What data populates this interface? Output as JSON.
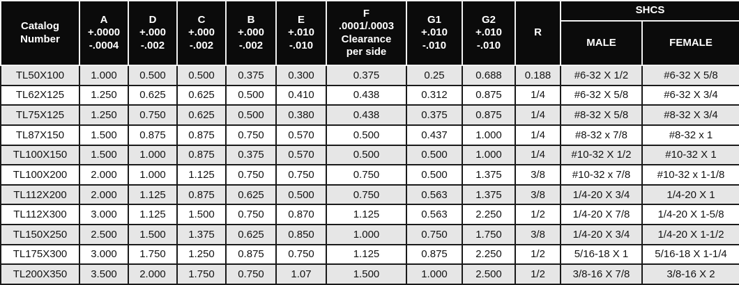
{
  "colors": {
    "header_bg": "#0b0b0b",
    "header_text": "#ffffff",
    "header_grid": "#f2f2f2",
    "body_grid": "#1a1a1a",
    "row_alt": "#e6e6e6",
    "row_base": "#ffffff",
    "body_text": "#121212"
  },
  "header": {
    "catalog_lines": [
      "Catalog",
      "Number"
    ],
    "cols": [
      {
        "id": "a",
        "lines": [
          "A",
          "+.0000",
          "-.0004"
        ]
      },
      {
        "id": "d",
        "lines": [
          "D",
          "+.000",
          "-.002"
        ]
      },
      {
        "id": "c",
        "lines": [
          "C",
          "+.000",
          "-.002"
        ]
      },
      {
        "id": "b",
        "lines": [
          "B",
          "+.000",
          "-.002"
        ]
      },
      {
        "id": "e",
        "lines": [
          "E",
          "+.010",
          "-.010"
        ]
      },
      {
        "id": "f",
        "lines": [
          "F",
          ".0001/.0003",
          "Clearance",
          "per side"
        ]
      },
      {
        "id": "g1",
        "lines": [
          "G1",
          "+.010",
          "-.010"
        ]
      },
      {
        "id": "g2",
        "lines": [
          "G2",
          "+.010",
          "-.010"
        ]
      }
    ],
    "r_label": "R",
    "shcs_label": "SHCS",
    "male_label": "MALE",
    "female_label": "FEMALE"
  },
  "column_ids": [
    "catalog",
    "a",
    "d",
    "c",
    "b",
    "e",
    "f",
    "g1",
    "g2",
    "r",
    "shcs-male",
    "shcs-female"
  ],
  "rows": [
    [
      "TL50X100",
      "1.000",
      "0.500",
      "0.500",
      "0.375",
      "0.300",
      "0.375",
      "0.25",
      "0.688",
      "0.188",
      "#6-32 X 1/2",
      "#6-32 X 5/8"
    ],
    [
      "TL62X125",
      "1.250",
      "0.625",
      "0.625",
      "0.500",
      "0.410",
      "0.438",
      "0.312",
      "0.875",
      "1/4",
      "#6-32 X 5/8",
      "#6-32 X 3/4"
    ],
    [
      "TL75X125",
      "1.250",
      "0.750",
      "0.625",
      "0.500",
      "0.380",
      "0.438",
      "0.375",
      "0.875",
      "1/4",
      "#8-32 X 5/8",
      "#8-32 X 3/4"
    ],
    [
      "TL87X150",
      "1.500",
      "0.875",
      "0.875",
      "0.750",
      "0.570",
      "0.500",
      "0.437",
      "1.000",
      "1/4",
      "#8-32 x 7/8",
      "#8-32 x 1"
    ],
    [
      "TL100X150",
      "1.500",
      "1.000",
      "0.875",
      "0.375",
      "0.570",
      "0.500",
      "0.500",
      "1.000",
      "1/4",
      "#10-32 X 1/2",
      "#10-32 X 1"
    ],
    [
      "TL100X200",
      "2.000",
      "1.000",
      "1.125",
      "0.750",
      "0.750",
      "0.750",
      "0.500",
      "1.375",
      "3/8",
      "#10-32 x 7/8",
      "#10-32 x 1-1/8"
    ],
    [
      "TL112X200",
      "2.000",
      "1.125",
      "0.875",
      "0.625",
      "0.500",
      "0.750",
      "0.563",
      "1.375",
      "3/8",
      "1/4-20 X 3/4",
      "1/4-20 X 1"
    ],
    [
      "TL112X300",
      "3.000",
      "1.125",
      "1.500",
      "0.750",
      "0.870",
      "1.125",
      "0.563",
      "2.250",
      "1/2",
      "1/4-20 X 7/8",
      "1/4-20 X 1-5/8"
    ],
    [
      "TL150X250",
      "2.500",
      "1.500",
      "1.375",
      "0.625",
      "0.850",
      "1.000",
      "0.750",
      "1.750",
      "3/8",
      "1/4-20 X 3/4",
      "1/4-20 X 1-1/2"
    ],
    [
      "TL175X300",
      "3.000",
      "1.750",
      "1.250",
      "0.875",
      "0.750",
      "1.125",
      "0.875",
      "2.250",
      "1/2",
      "5/16-18 X 1",
      "5/16-18 X 1-1/4"
    ],
    [
      "TL200X350",
      "3.500",
      "2.000",
      "1.750",
      "0.750",
      "1.07",
      "1.500",
      "1.000",
      "2.500",
      "1/2",
      "3/8-16 X 7/8",
      "3/8-16 X 2"
    ]
  ]
}
